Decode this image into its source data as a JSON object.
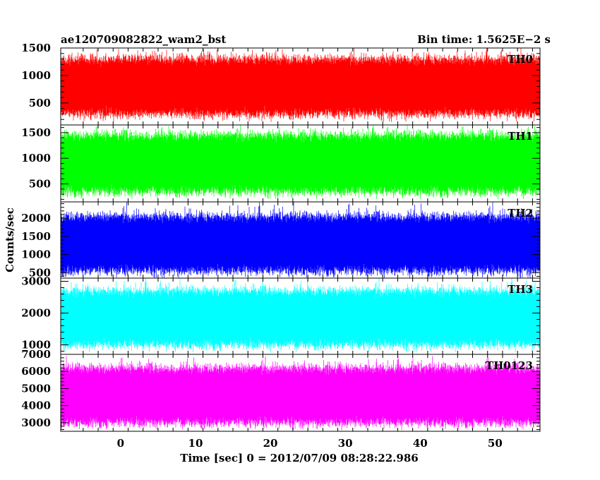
{
  "header": {
    "title": "ae120709082822_wam2_bst",
    "bin_time": "Bin time: 1.5625E−2 s"
  },
  "chart_data": {
    "type": "line",
    "title": "ae120709082822_wam2_bst",
    "xlabel": "Time [sec] 0 = 2012/07/09 08:28:22.986",
    "ylabel": "Counts/sec",
    "xlim": [
      -8,
      56
    ],
    "data_x_range": [
      -8,
      56
    ],
    "x_ticks": [
      0,
      10,
      20,
      30,
      40,
      50
    ],
    "x_tick_labels": [
      "0",
      "10",
      "20",
      "30",
      "40",
      "50"
    ],
    "grid": false,
    "series": [
      {
        "name": "TH0",
        "color": "#ff0000",
        "ylim": [
          100,
          1500
        ],
        "y_ticks": [
          500,
          1000,
          1500
        ],
        "y_tick_labels": [
          "500",
          "1000",
          "1500"
        ],
        "typical_range": [
          300,
          1300
        ],
        "extreme_range": [
          150,
          1500
        ]
      },
      {
        "name": "TH1",
        "color": "#00ff00",
        "ylim": [
          150,
          1650
        ],
        "y_ticks": [
          500,
          1000,
          1500
        ],
        "y_tick_labels": [
          "500",
          "1000",
          "1500"
        ],
        "typical_range": [
          350,
          1450
        ],
        "extreme_range": [
          200,
          1650
        ]
      },
      {
        "name": "TH2",
        "color": "#0000ff",
        "ylim": [
          350,
          2450
        ],
        "y_ticks": [
          500,
          1000,
          1500,
          2000
        ],
        "y_tick_labels": [
          "500",
          "1000",
          "1500",
          "2000"
        ],
        "typical_range": [
          550,
          2050
        ],
        "extreme_range": [
          350,
          2450
        ]
      },
      {
        "name": "TH3",
        "color": "#00ffff",
        "ylim": [
          700,
          3100
        ],
        "y_ticks": [
          1000,
          2000,
          3000
        ],
        "y_tick_labels": [
          "1000",
          "2000",
          "3000"
        ],
        "typical_range": [
          1000,
          2700
        ],
        "extreme_range": [
          750,
          3100
        ]
      },
      {
        "name": "TH0123",
        "color": "#ff00ff",
        "ylim": [
          2500,
          7000
        ],
        "y_ticks": [
          3000,
          4000,
          5000,
          6000,
          7000
        ],
        "y_tick_labels": [
          "3000",
          "4000",
          "5000",
          "6000",
          "7000"
        ],
        "typical_range": [
          3000,
          6200
        ],
        "extreme_range": [
          2600,
          6900
        ]
      }
    ]
  }
}
